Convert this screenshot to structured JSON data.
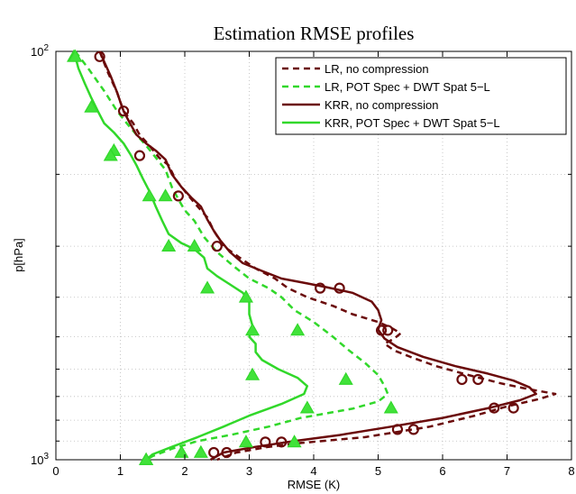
{
  "chart_data": {
    "type": "line",
    "title": "Estimation RMSE profiles",
    "xlabel": "RMSE (K)",
    "ylabel": "p[hPa]",
    "xlim": [
      0,
      8
    ],
    "ylim": [
      100,
      1000
    ],
    "y_scale": "log",
    "y_reversed": true,
    "grid": true,
    "legend_position": "top-right",
    "x_ticks": [
      "0",
      "1",
      "2",
      "3",
      "4",
      "5",
      "6",
      "7",
      "8"
    ],
    "y_tick_labels": [
      {
        "base": "10",
        "exp": "2",
        "value": 100
      },
      {
        "base": "10",
        "exp": "3",
        "value": 1000
      }
    ],
    "colors": {
      "lr": "#6a0a0a",
      "krr": "#31d82a",
      "marker_fill": "#41e23a"
    },
    "series": [
      {
        "name": "LR, no compression",
        "color": "#6a0a0a",
        "dash": true,
        "marker": "none",
        "points": [
          [
            0.68,
            100
          ],
          [
            0.8,
            112
          ],
          [
            0.95,
            126
          ],
          [
            1.0,
            133
          ],
          [
            1.05,
            140
          ],
          [
            1.2,
            150
          ],
          [
            1.3,
            160
          ],
          [
            1.45,
            170
          ],
          [
            1.6,
            182
          ],
          [
            1.75,
            190
          ],
          [
            1.85,
            205
          ],
          [
            2.05,
            225
          ],
          [
            2.2,
            240
          ],
          [
            2.35,
            255
          ],
          [
            2.45,
            275
          ],
          [
            2.6,
            300
          ],
          [
            2.85,
            320
          ],
          [
            3.1,
            340
          ],
          [
            3.4,
            360
          ],
          [
            3.6,
            380
          ],
          [
            3.9,
            400
          ],
          [
            4.3,
            420
          ],
          [
            4.6,
            440
          ],
          [
            5.0,
            460
          ],
          [
            5.2,
            475
          ],
          [
            5.35,
            490
          ],
          [
            5.25,
            505
          ],
          [
            5.1,
            520
          ],
          [
            5.25,
            540
          ],
          [
            5.5,
            560
          ],
          [
            5.9,
            590
          ],
          [
            6.4,
            620
          ],
          [
            6.9,
            650
          ],
          [
            7.3,
            670
          ],
          [
            7.75,
            690
          ],
          [
            7.5,
            710
          ],
          [
            7.0,
            740
          ],
          [
            6.5,
            780
          ],
          [
            5.8,
            830
          ],
          [
            4.8,
            880
          ],
          [
            3.8,
            910
          ],
          [
            3.3,
            930
          ],
          [
            2.8,
            960
          ],
          [
            2.5,
            1000
          ]
        ]
      },
      {
        "name": "LR, POT Spec + DWT Spat 5−L",
        "color": "#31d82a",
        "dash": true,
        "marker": "none",
        "points": [
          [
            0.3,
            100
          ],
          [
            0.5,
            110
          ],
          [
            0.75,
            125
          ],
          [
            0.95,
            140
          ],
          [
            1.1,
            150
          ],
          [
            1.25,
            160
          ],
          [
            1.4,
            170
          ],
          [
            1.55,
            182
          ],
          [
            1.7,
            195
          ],
          [
            1.8,
            215
          ],
          [
            1.9,
            230
          ],
          [
            2.0,
            245
          ],
          [
            2.15,
            260
          ],
          [
            2.3,
            285
          ],
          [
            2.5,
            310
          ],
          [
            2.75,
            335
          ],
          [
            3.0,
            360
          ],
          [
            3.3,
            380
          ],
          [
            3.5,
            400
          ],
          [
            3.7,
            430
          ],
          [
            4.0,
            460
          ],
          [
            4.3,
            500
          ],
          [
            4.55,
            540
          ],
          [
            4.8,
            580
          ],
          [
            5.0,
            620
          ],
          [
            5.1,
            660
          ],
          [
            5.15,
            690
          ],
          [
            5.0,
            720
          ],
          [
            4.6,
            750
          ],
          [
            3.8,
            790
          ],
          [
            3.3,
            830
          ],
          [
            2.7,
            870
          ],
          [
            2.2,
            900
          ],
          [
            1.8,
            940
          ],
          [
            1.5,
            980
          ],
          [
            1.4,
            1000
          ]
        ]
      },
      {
        "name": "KRR, no compression",
        "color": "#6a0a0a",
        "dash": false,
        "marker": "circle",
        "points": [
          [
            0.68,
            100
          ],
          [
            0.75,
            106
          ],
          [
            0.85,
            115
          ],
          [
            0.95,
            126
          ],
          [
            1.0,
            133
          ],
          [
            1.05,
            140
          ],
          [
            1.15,
            150
          ],
          [
            1.25,
            160
          ],
          [
            1.4,
            168
          ],
          [
            1.55,
            175
          ],
          [
            1.7,
            184
          ],
          [
            1.8,
            200
          ],
          [
            1.95,
            215
          ],
          [
            2.1,
            228
          ],
          [
            2.25,
            240
          ],
          [
            2.35,
            258
          ],
          [
            2.45,
            275
          ],
          [
            2.55,
            290
          ],
          [
            2.7,
            310
          ],
          [
            2.9,
            330
          ],
          [
            3.2,
            345
          ],
          [
            3.5,
            360
          ],
          [
            3.9,
            370
          ],
          [
            4.2,
            378
          ],
          [
            4.6,
            390
          ],
          [
            4.9,
            410
          ],
          [
            5.0,
            430
          ],
          [
            5.05,
            455
          ],
          [
            5.0,
            480
          ],
          [
            5.1,
            505
          ],
          [
            5.3,
            530
          ],
          [
            5.7,
            560
          ],
          [
            6.2,
            590
          ],
          [
            6.7,
            615
          ],
          [
            7.1,
            640
          ],
          [
            7.35,
            665
          ],
          [
            7.45,
            690
          ],
          [
            7.2,
            715
          ],
          [
            6.75,
            745
          ],
          [
            6.0,
            790
          ],
          [
            5.2,
            830
          ],
          [
            4.4,
            870
          ],
          [
            3.7,
            900
          ],
          [
            3.1,
            930
          ],
          [
            2.6,
            960
          ],
          [
            2.4,
            1000
          ]
        ]
      },
      {
        "name": "KRR, POT Spec + DWT Spat 5−L",
        "color": "#31d82a",
        "dash": false,
        "marker": "triangle",
        "points": [
          [
            0.28,
            100
          ],
          [
            0.35,
            110
          ],
          [
            0.45,
            120
          ],
          [
            0.55,
            130
          ],
          [
            0.65,
            140
          ],
          [
            0.75,
            150
          ],
          [
            0.9,
            158
          ],
          [
            1.05,
            168
          ],
          [
            1.15,
            178
          ],
          [
            1.25,
            190
          ],
          [
            1.35,
            205
          ],
          [
            1.45,
            220
          ],
          [
            1.55,
            240
          ],
          [
            1.65,
            260
          ],
          [
            1.75,
            280
          ],
          [
            1.95,
            295
          ],
          [
            2.15,
            305
          ],
          [
            2.3,
            320
          ],
          [
            2.35,
            340
          ],
          [
            2.5,
            355
          ],
          [
            2.7,
            372
          ],
          [
            2.9,
            390
          ],
          [
            3.0,
            410
          ],
          [
            3.0,
            440
          ],
          [
            3.05,
            470
          ],
          [
            3.0,
            500
          ],
          [
            3.1,
            520
          ],
          [
            3.1,
            545
          ],
          [
            3.2,
            570
          ],
          [
            3.45,
            600
          ],
          [
            3.75,
            630
          ],
          [
            3.9,
            660
          ],
          [
            3.85,
            690
          ],
          [
            3.5,
            730
          ],
          [
            3.0,
            780
          ],
          [
            2.6,
            830
          ],
          [
            2.2,
            880
          ],
          [
            1.8,
            930
          ],
          [
            1.5,
            970
          ],
          [
            1.4,
            1000
          ]
        ]
      }
    ],
    "markers": [
      {
        "series": 2,
        "symbol": "circle",
        "points": [
          [
            0.68,
            103
          ],
          [
            1.05,
            140
          ],
          [
            1.3,
            180
          ],
          [
            1.9,
            226
          ],
          [
            2.5,
            300
          ],
          [
            4.1,
            380
          ],
          [
            4.4,
            380
          ],
          [
            5.05,
            482
          ],
          [
            5.15,
            482
          ],
          [
            6.3,
            636
          ],
          [
            6.55,
            636
          ],
          [
            6.8,
            747
          ],
          [
            7.1,
            747
          ],
          [
            5.3,
            843
          ],
          [
            5.55,
            843
          ],
          [
            3.25,
            905
          ],
          [
            3.5,
            905
          ],
          [
            2.45,
            960
          ],
          [
            2.65,
            960
          ]
        ]
      },
      {
        "series": 3,
        "symbol": "triangle",
        "points": [
          [
            0.28,
            103
          ],
          [
            0.55,
            137
          ],
          [
            0.9,
            175
          ],
          [
            1.45,
            226
          ],
          [
            1.75,
            300
          ],
          [
            2.35,
            380
          ],
          [
            3.05,
            482
          ],
          [
            3.05,
            620
          ],
          [
            3.9,
            747
          ],
          [
            2.95,
            905
          ],
          [
            1.95,
            960
          ],
          [
            1.4,
            1000
          ]
        ]
      },
      {
        "series": 1,
        "symbol": "triangle",
        "points": [
          [
            0.3,
            103
          ],
          [
            0.85,
            180
          ],
          [
            1.7,
            226
          ],
          [
            2.15,
            300
          ],
          [
            2.95,
            400
          ],
          [
            3.75,
            482
          ],
          [
            4.5,
            636
          ],
          [
            5.2,
            747
          ],
          [
            3.7,
            905
          ],
          [
            2.25,
            960
          ],
          [
            1.4,
            1000
          ]
        ]
      }
    ]
  }
}
